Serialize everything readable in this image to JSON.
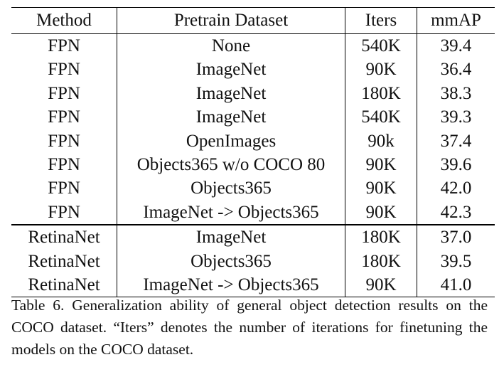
{
  "table": {
    "headers": [
      "Method",
      "Pretrain Dataset",
      "Iters",
      "mmAP"
    ],
    "rows": [
      {
        "method": "FPN",
        "dataset": "None",
        "iters": "540K",
        "mmap": "39.4",
        "bold": false,
        "group_start": false
      },
      {
        "method": "FPN",
        "dataset": "ImageNet",
        "iters": "90K",
        "mmap": "36.4",
        "bold": false,
        "group_start": false
      },
      {
        "method": "FPN",
        "dataset": "ImageNet",
        "iters": "180K",
        "mmap": "38.3",
        "bold": false,
        "group_start": false
      },
      {
        "method": "FPN",
        "dataset": "ImageNet",
        "iters": "540K",
        "mmap": "39.3",
        "bold": false,
        "group_start": false
      },
      {
        "method": "FPN",
        "dataset": "OpenImages",
        "iters": "90k",
        "mmap": "37.4",
        "bold": false,
        "group_start": false
      },
      {
        "method": "FPN",
        "dataset": "Objects365 w/o COCO 80",
        "iters": "90K",
        "mmap": "39.6",
        "bold": false,
        "group_start": false
      },
      {
        "method": "FPN",
        "dataset": "Objects365",
        "iters": "90K",
        "mmap": "42.0",
        "bold": false,
        "group_start": false
      },
      {
        "method": "FPN",
        "dataset": "ImageNet -> Objects365",
        "iters": "90K",
        "mmap": "42.3",
        "bold": true,
        "group_start": false
      },
      {
        "method": "RetinaNet",
        "dataset": "ImageNet",
        "iters": "180K",
        "mmap": "37.0",
        "bold": false,
        "group_start": true
      },
      {
        "method": "RetinaNet",
        "dataset": "Objects365",
        "iters": "180K",
        "mmap": "39.5",
        "bold": false,
        "group_start": false
      },
      {
        "method": "RetinaNet",
        "dataset": "ImageNet -> Objects365",
        "iters": "90K",
        "mmap": "41.0",
        "bold": true,
        "group_start": false
      }
    ]
  },
  "caption": "Table 6. Generalization ability of general object detection results on the COCO dataset. “Iters” denotes the number of iterations for finetuning the models on the COCO dataset."
}
